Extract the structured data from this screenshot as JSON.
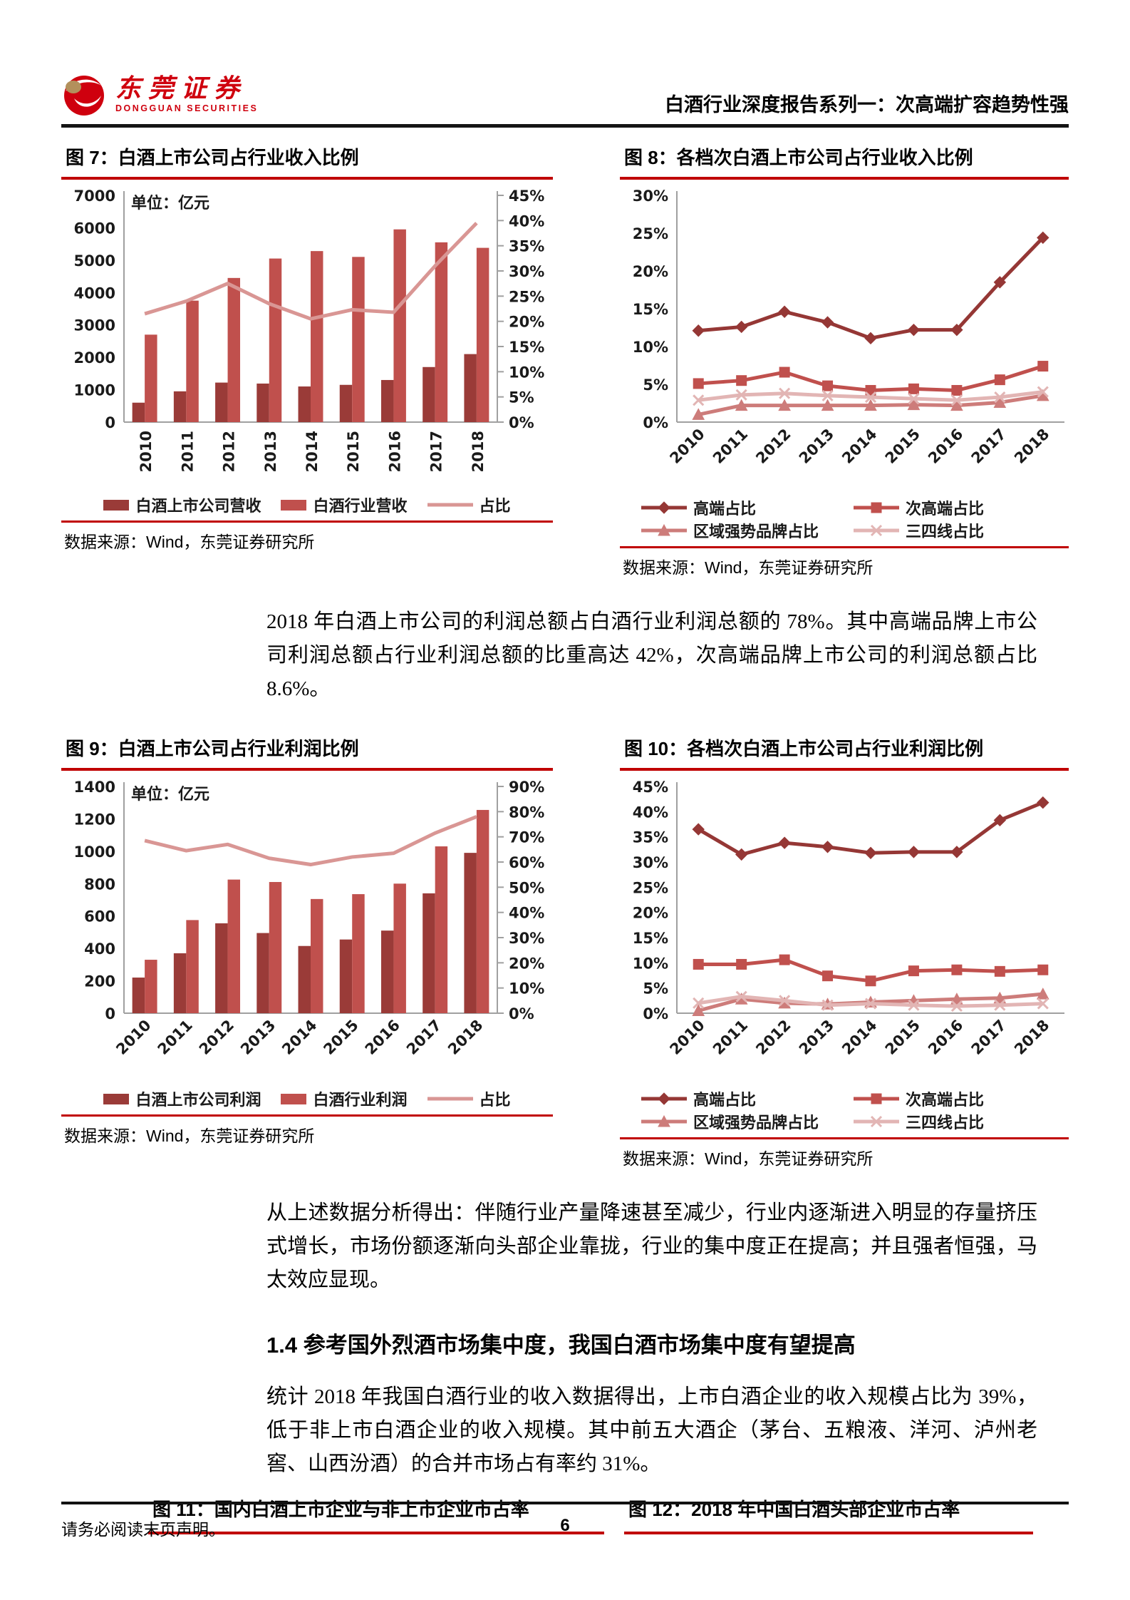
{
  "header": {
    "logo_cn": "东莞证券",
    "logo_en": "DONGGUAN SECURITIES",
    "report_title": "白酒行业深度报告系列一：次高端扩容趋势性强"
  },
  "figures": {
    "fig7": {
      "title": "图 7：白酒上市公司占行业收入比例",
      "source": "数据来源：Wind，东莞证券研究所"
    },
    "fig8": {
      "title": "图 8：各档次白酒上市公司占行业收入比例",
      "source": "数据来源：Wind，东莞证券研究所"
    },
    "fig9": {
      "title": "图 9：白酒上市公司占行业利润比例",
      "source": "数据来源：Wind，东莞证券研究所"
    },
    "fig10": {
      "title": "图 10：各档次白酒上市公司占行业利润比例",
      "source": "数据来源：Wind，东莞证券研究所"
    },
    "fig11": {
      "title": "图 11：国内白酒上市企业与非上市企业市占率"
    },
    "fig12": {
      "title": "图 12：2018 年中国白酒头部企业市占率"
    }
  },
  "paragraphs": {
    "p1": "2018 年白酒上市公司的利润总额占白酒行业利润总额的 78%。其中高端品牌上市公司利润总额占行业利润总额的比重高达 42%，次高端品牌上市公司的利润总额占比 8.6%。",
    "p2": "从上述数据分析得出：伴随行业产量降速甚至减少，行业内逐渐进入明显的存量挤压式增长，市场份额逐渐向头部企业靠拢，行业的集中度正在提高；并且强者恒强，马太效应显现。",
    "p3": "统计 2018 年我国白酒行业的收入数据得出，上市白酒企业的收入规模占比为 39%，低于非上市白酒企业的收入规模。其中前五大酒企（茅台、五粮液、洋河、泸州老窖、山西汾酒）的合并市场占有率约 31%。"
  },
  "section_heading": "1.4 参考国外烈酒市场集中度，我国白酒市场集中度有望提高",
  "footer": {
    "disclaimer": "请务必阅读末页声明。",
    "page_number": "6"
  },
  "colors": {
    "brand_red": "#cf000e",
    "rule_red": "#c00000",
    "bar_dark": "#9a3b38",
    "bar_red": "#c0504d",
    "line_pink": "#d99694",
    "line_dark": "#953735",
    "line_light": "#cd7c7a",
    "line_pale": "#e2b5b4"
  },
  "chart_data": [
    {
      "id": "chart-7",
      "type": "bar+line",
      "title": "图 7：白酒上市公司占行业收入比例",
      "categories": [
        "2010",
        "2011",
        "2012",
        "2013",
        "2014",
        "2015",
        "2016",
        "2017",
        "2018"
      ],
      "series": [
        {
          "name": "白酒上市公司营收",
          "type": "bar",
          "color": "#9a3b38",
          "values": [
            600,
            950,
            1220,
            1190,
            1100,
            1150,
            1300,
            1700,
            2100
          ]
        },
        {
          "name": "白酒行业营收",
          "type": "bar",
          "color": "#c0504d",
          "values": [
            2700,
            3750,
            4450,
            5050,
            5280,
            5100,
            5950,
            5550,
            5380
          ]
        },
        {
          "name": "占比",
          "type": "line",
          "axis": "right",
          "color": "#d99694",
          "values": [
            21.5,
            24.0,
            27.5,
            23.5,
            20.5,
            22.3,
            21.8,
            31.0,
            39.5
          ]
        }
      ],
      "left_axis": {
        "min": 0,
        "max": 7000,
        "step": 1000,
        "unit": "单位：亿元"
      },
      "right_axis": {
        "min": 0,
        "max": 45,
        "step": 5,
        "format": "percent"
      },
      "grid": false,
      "legend_position": "bottom"
    },
    {
      "id": "chart-8",
      "type": "line",
      "title": "图 8：各档次白酒上市公司占行业收入比例",
      "categories": [
        "2010",
        "2011",
        "2012",
        "2013",
        "2014",
        "2015",
        "2016",
        "2017",
        "2018"
      ],
      "series": [
        {
          "name": "高端占比",
          "type": "line",
          "marker": "diamond",
          "color": "#953735",
          "values": [
            12.1,
            12.6,
            14.6,
            13.2,
            11.1,
            12.2,
            12.2,
            18.5,
            24.4
          ]
        },
        {
          "name": "次高端占比",
          "type": "line",
          "marker": "square",
          "color": "#c0504d",
          "values": [
            5.1,
            5.5,
            6.6,
            4.8,
            4.2,
            4.4,
            4.2,
            5.6,
            7.4
          ]
        },
        {
          "name": "区域强势品牌占比",
          "type": "line",
          "marker": "triangle",
          "color": "#cd7c7a",
          "values": [
            1.0,
            2.2,
            2.2,
            2.2,
            2.2,
            2.3,
            2.2,
            2.6,
            3.5
          ]
        },
        {
          "name": "三四线占比",
          "type": "line",
          "marker": "x",
          "color": "#e2b5b4",
          "values": [
            2.9,
            3.6,
            3.8,
            3.5,
            3.3,
            3.1,
            2.9,
            3.3,
            4.0
          ]
        }
      ],
      "left_axis": {
        "min": 0,
        "max": 30,
        "step": 5,
        "format": "percent"
      },
      "grid": false,
      "legend_position": "bottom"
    },
    {
      "id": "chart-9",
      "type": "bar+line",
      "title": "图 9：白酒上市公司占行业利润比例",
      "categories": [
        "2010",
        "2011",
        "2012",
        "2013",
        "2014",
        "2015",
        "2016",
        "2017",
        "2018"
      ],
      "series": [
        {
          "name": "白酒上市公司利润",
          "type": "bar",
          "color": "#9a3b38",
          "values": [
            220,
            370,
            555,
            495,
            415,
            455,
            510,
            740,
            990
          ]
        },
        {
          "name": "白酒行业利润",
          "type": "bar",
          "color": "#c0504d",
          "values": [
            330,
            575,
            825,
            810,
            705,
            735,
            800,
            1030,
            1255
          ]
        },
        {
          "name": "占比",
          "type": "line",
          "axis": "right",
          "color": "#d99694",
          "values": [
            68.5,
            64.5,
            67.0,
            61.5,
            59.0,
            62.0,
            63.5,
            71.5,
            78.0
          ]
        }
      ],
      "left_axis": {
        "min": 0,
        "max": 1400,
        "step": 200,
        "unit": "单位：亿元"
      },
      "right_axis": {
        "min": 0,
        "max": 90,
        "step": 10,
        "format": "percent"
      },
      "grid": false,
      "legend_position": "bottom"
    },
    {
      "id": "chart-10",
      "type": "line",
      "title": "图 10：各档次白酒上市公司占行业利润比例",
      "categories": [
        "2010",
        "2011",
        "2012",
        "2013",
        "2014",
        "2015",
        "2016",
        "2017",
        "2018"
      ],
      "series": [
        {
          "name": "高端占比",
          "type": "line",
          "marker": "diamond",
          "color": "#953735",
          "values": [
            36.5,
            31.5,
            33.8,
            33.0,
            31.8,
            32.0,
            32.0,
            38.3,
            41.8
          ]
        },
        {
          "name": "次高端占比",
          "type": "line",
          "marker": "square",
          "color": "#c0504d",
          "values": [
            9.7,
            9.7,
            10.6,
            7.4,
            6.4,
            8.4,
            8.6,
            8.3,
            8.6
          ]
        },
        {
          "name": "区域强势品牌占比",
          "type": "line",
          "marker": "triangle",
          "color": "#cd7c7a",
          "values": [
            0.5,
            2.8,
            2.0,
            1.8,
            2.2,
            2.5,
            2.8,
            3.0,
            3.8
          ]
        },
        {
          "name": "三四线占比",
          "type": "line",
          "marker": "x",
          "color": "#e2b5b4",
          "values": [
            2.0,
            3.3,
            2.5,
            1.6,
            1.9,
            1.6,
            1.4,
            1.6,
            1.9
          ]
        }
      ],
      "left_axis": {
        "min": 0,
        "max": 45,
        "step": 5,
        "format": "percent"
      },
      "grid": false,
      "legend_position": "bottom"
    }
  ]
}
